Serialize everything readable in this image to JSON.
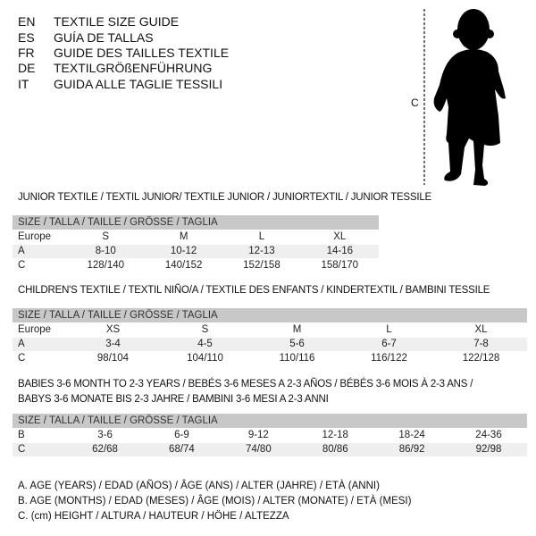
{
  "languages": [
    {
      "code": "EN",
      "text": "TEXTILE SIZE GUIDE"
    },
    {
      "code": "ES",
      "text": "GUÍA DE TALLAS"
    },
    {
      "code": "FR",
      "text": "GUIDE DES TAILLES TEXTILE"
    },
    {
      "code": "DE",
      "text": "TEXTILGRÖßENFÜHRUNG"
    },
    {
      "code": "IT",
      "text": "GUIDA ALLE TAGLIE TESSILI"
    }
  ],
  "figure": {
    "icon": "child-silhouette-icon",
    "measure_label": "C"
  },
  "tables": [
    {
      "heading": [
        "JUNIOR TEXTILE / TEXTIL JUNIOR/ TEXTILE JUNIOR / JUNIORTEXTIL / JUNIOR TESSILE"
      ],
      "header": "SIZE / TALLA / TAILLE / GRÖSSE / TAGLIA",
      "rows": [
        {
          "label": "Europe",
          "values": [
            "S",
            "M",
            "L",
            "XL"
          ]
        },
        {
          "label": "A",
          "values": [
            "8-10",
            "10-12",
            "12-13",
            "14-16"
          ]
        },
        {
          "label": "C",
          "values": [
            "128/140",
            "140/152",
            "152/158",
            "158/170"
          ]
        }
      ]
    },
    {
      "heading": [
        "CHILDREN'S TEXTILE / TEXTIL NIÑO/A / TEXTILE DES ENFANTS / KINDERTEXTIL / BAMBINI TESSILE"
      ],
      "header": "SIZE / TALLA / TAILLE / GRÖSSE / TAGLIA",
      "rows": [
        {
          "label": "Europe",
          "values": [
            "XS",
            "S",
            "M",
            "L",
            "XL"
          ]
        },
        {
          "label": "A",
          "values": [
            "3-4",
            "4-5",
            "5-6",
            "6-7",
            "7-8"
          ]
        },
        {
          "label": "C",
          "values": [
            "98/104",
            "104/110",
            "110/116",
            "116/122",
            "122/128"
          ]
        }
      ]
    },
    {
      "heading": [
        "BABIES 3-6 MONTH TO 2-3 YEARS / BEBÉS 3-6 MESES A 2-3 AÑOS / BÉBÉS 3-6 MOIS À 2-3 ANS /",
        "BABYS 3-6 MONATE BIS 2-3 JAHRE / BAMBINI 3-6 MESI A 2-3 ANNI"
      ],
      "header": "SIZE / TALLA / TAILLE / GRÖSSE / TAGLIA",
      "rows": [
        {
          "label": "B",
          "values": [
            "3-6",
            "6-9",
            "9-12",
            "12-18",
            "18-24",
            "24-36"
          ]
        },
        {
          "label": "C",
          "values": [
            "62/68",
            "68/74",
            "74/80",
            "80/86",
            "86/92",
            "92/98"
          ]
        }
      ]
    }
  ],
  "legend": [
    "A. AGE (YEARS) / EDAD (AÑOS) / ÂGE (ANS) / ALTER (JAHRE) / ETÀ (ANNI)",
    "B. AGE (MONTHS) / EDAD (MESES) / ÂGE (MOIS) / ALTER (MONATE) / ETÀ (MESI)",
    "C. (cm) HEIGHT / ALTURA / HAUTEUR / HÖHE / ALTEZZA"
  ]
}
